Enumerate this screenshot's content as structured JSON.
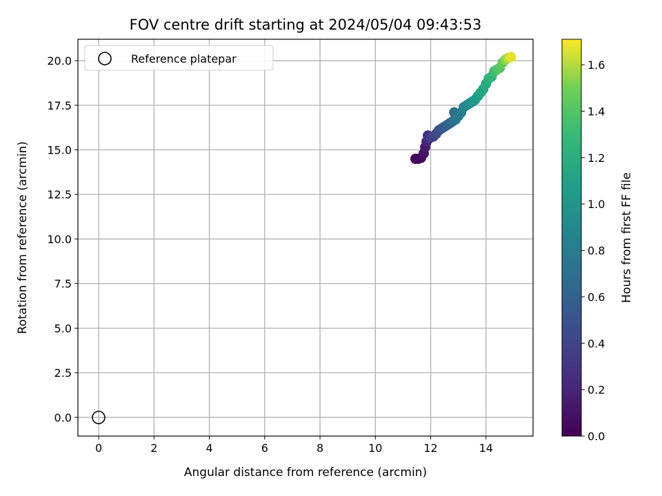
{
  "chart_data": {
    "type": "scatter",
    "title": "FOV centre drift starting at 2024/05/04 09:43:53",
    "xlabel": "Angular distance from reference (arcmin)",
    "ylabel": "Rotation from reference (arcmin)",
    "xlim": [
      -0.75,
      15.7
    ],
    "ylim": [
      -1.05,
      21.2
    ],
    "xticks": [
      "0",
      "2",
      "4",
      "6",
      "8",
      "10",
      "12",
      "14"
    ],
    "yticks": [
      "0.0",
      "2.5",
      "5.0",
      "7.5",
      "10.0",
      "12.5",
      "15.0",
      "17.5",
      "20.0"
    ],
    "grid": true,
    "legend": {
      "position": "top-left",
      "entries": [
        "Reference platepar"
      ]
    },
    "reference_point": {
      "x": 0,
      "y": 0,
      "label": "Reference platepar"
    },
    "colorbar": {
      "label": "Hours from first FF file",
      "colormap": "viridis",
      "range": [
        0.0,
        1.71
      ],
      "ticks": [
        "0.0",
        "0.2",
        "0.4",
        "0.6",
        "0.8",
        "1.0",
        "1.2",
        "1.4",
        "1.6"
      ]
    },
    "series": [
      {
        "x": [
          11.45,
          11.55,
          11.65,
          11.75,
          11.8,
          11.85,
          11.9,
          11.95,
          12.0,
          12.1,
          12.2,
          12.3,
          12.4,
          12.5,
          12.6,
          12.7,
          12.8,
          12.85,
          12.9,
          13.0,
          13.1,
          13.2,
          13.3,
          13.4,
          13.5,
          13.6,
          13.7,
          13.8,
          13.9,
          14.0,
          14.1,
          14.2,
          14.3,
          14.4,
          14.5,
          14.6,
          14.7,
          14.8,
          14.9
        ],
        "y": [
          14.5,
          14.5,
          14.55,
          14.8,
          15.15,
          15.45,
          15.8,
          15.65,
          15.7,
          15.75,
          15.9,
          16.1,
          16.2,
          16.3,
          16.4,
          16.5,
          16.6,
          17.1,
          16.7,
          16.9,
          17.1,
          17.4,
          17.5,
          17.6,
          17.7,
          17.8,
          18.0,
          18.2,
          18.4,
          18.7,
          19.0,
          19.1,
          19.4,
          19.5,
          19.6,
          19.9,
          20.05,
          20.15,
          20.2
        ],
        "c": [
          0.0,
          0.03,
          0.06,
          0.1,
          0.14,
          0.19,
          0.24,
          0.29,
          0.34,
          0.38,
          0.42,
          0.46,
          0.5,
          0.54,
          0.58,
          0.62,
          0.66,
          0.7,
          0.74,
          0.78,
          0.82,
          0.86,
          0.9,
          0.94,
          0.98,
          1.02,
          1.06,
          1.1,
          1.14,
          1.18,
          1.22,
          1.27,
          1.32,
          1.37,
          1.42,
          1.47,
          1.53,
          1.6,
          1.67
        ]
      }
    ]
  }
}
